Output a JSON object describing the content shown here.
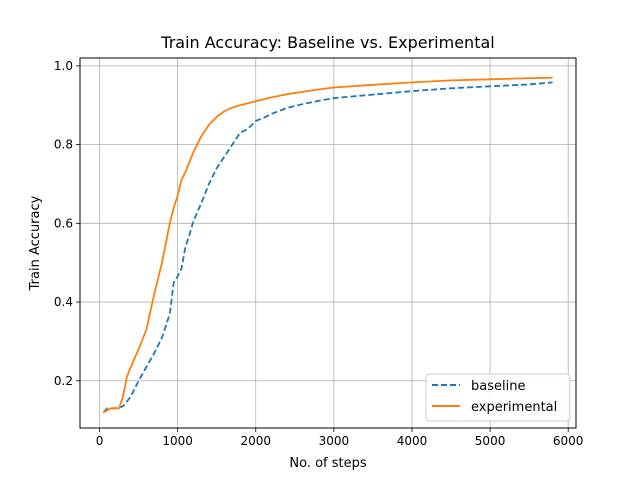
{
  "chart_data": {
    "type": "line",
    "title": "Train Accuracy: Baseline vs. Experimental",
    "xlabel": "No. of steps",
    "ylabel": "Train Accuracy",
    "xlim": [
      -250,
      6100
    ],
    "ylim": [
      0.08,
      1.02
    ],
    "xticks": [
      0,
      1000,
      2000,
      3000,
      4000,
      5000,
      6000
    ],
    "yticks": [
      0.2,
      0.4,
      0.6,
      0.8,
      1.0
    ],
    "xtick_labels": [
      "0",
      "1000",
      "2000",
      "3000",
      "4000",
      "5000",
      "6000"
    ],
    "ytick_labels": [
      "0.2",
      "0.4",
      "0.6",
      "0.8",
      "1.0"
    ],
    "grid": true,
    "legend_position": "lower-right",
    "series": [
      {
        "name": "baseline",
        "color": "#1f77b4",
        "style": "dashed",
        "x": [
          50,
          100,
          200,
          300,
          400,
          500,
          600,
          700,
          800,
          900,
          950,
          1000,
          1050,
          1100,
          1150,
          1200,
          1300,
          1400,
          1500,
          1600,
          1700,
          1800,
          1900,
          2000,
          2100,
          2200,
          2400,
          2600,
          2800,
          3000,
          3500,
          4000,
          4500,
          5000,
          5500,
          5800
        ],
        "y": [
          0.12,
          0.13,
          0.13,
          0.135,
          0.16,
          0.2,
          0.235,
          0.27,
          0.31,
          0.37,
          0.45,
          0.465,
          0.485,
          0.54,
          0.57,
          0.605,
          0.65,
          0.7,
          0.74,
          0.77,
          0.8,
          0.83,
          0.84,
          0.86,
          0.868,
          0.878,
          0.893,
          0.903,
          0.911,
          0.918,
          0.927,
          0.936,
          0.943,
          0.948,
          0.953,
          0.958
        ]
      },
      {
        "name": "experimental",
        "color": "#ff7f0e",
        "style": "solid",
        "x": [
          50,
          100,
          150,
          200,
          250,
          300,
          350,
          400,
          500,
          600,
          700,
          800,
          900,
          950,
          1000,
          1050,
          1100,
          1200,
          1300,
          1400,
          1500,
          1600,
          1700,
          1800,
          2000,
          2200,
          2400,
          2600,
          2800,
          3000,
          3500,
          4000,
          4500,
          5000,
          5500,
          5800
        ],
        "y": [
          0.12,
          0.125,
          0.13,
          0.13,
          0.13,
          0.16,
          0.21,
          0.235,
          0.28,
          0.33,
          0.42,
          0.5,
          0.6,
          0.64,
          0.67,
          0.71,
          0.73,
          0.78,
          0.82,
          0.85,
          0.87,
          0.885,
          0.894,
          0.9,
          0.91,
          0.92,
          0.928,
          0.934,
          0.94,
          0.945,
          0.952,
          0.958,
          0.963,
          0.966,
          0.969,
          0.97
        ]
      }
    ]
  }
}
